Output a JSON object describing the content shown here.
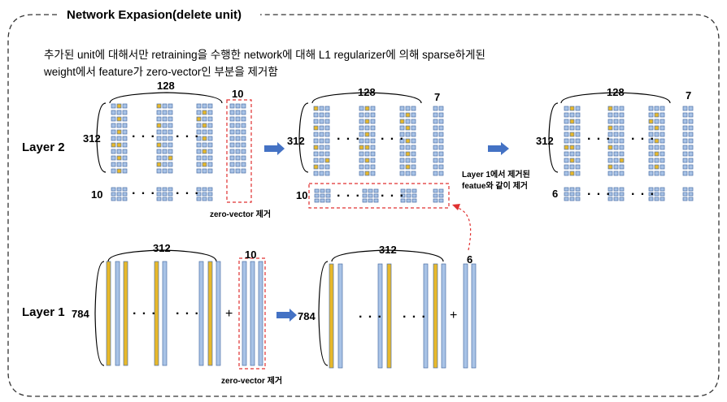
{
  "title": "Network Expasion(delete unit)",
  "description": {
    "line1": "추가된 unit에 대해서만 retraining을 수행한 network에 대해 L1 regularizer에 의해 sparse하게된",
    "line2": "weight에서 feature가 zero-vector인 부분을 제거함"
  },
  "layer2": {
    "name": "Layer 2",
    "stage1": {
      "top_count": "128",
      "extra_count": "10",
      "rows": "312",
      "bias_count": "10",
      "note": "zero-vector 제거"
    },
    "stage2": {
      "top_count": "128",
      "extra_count": "7",
      "rows": "312",
      "bias_count": "10"
    },
    "stage3": {
      "top_count": "128",
      "extra_count": "7",
      "rows": "312",
      "bias_count": "6"
    },
    "transfer_note": {
      "line1": "Layer 1에서 제거된",
      "line2": "featue와 같이 제거"
    }
  },
  "layer1": {
    "name": "Layer 1",
    "stage1": {
      "top_count": "312",
      "extra_count": "10",
      "rows": "784",
      "note": "zero-vector 제거"
    },
    "stage2": {
      "top_count": "312",
      "extra_count": "6",
      "rows": "784"
    }
  },
  "ellipsis": "· · ·",
  "plus": "+",
  "colors": {
    "blue": "#a9c3e6",
    "gold": "#e7b82b",
    "border": "#4a6fa5",
    "red": "#e03030",
    "arrow": "#4472c4"
  }
}
